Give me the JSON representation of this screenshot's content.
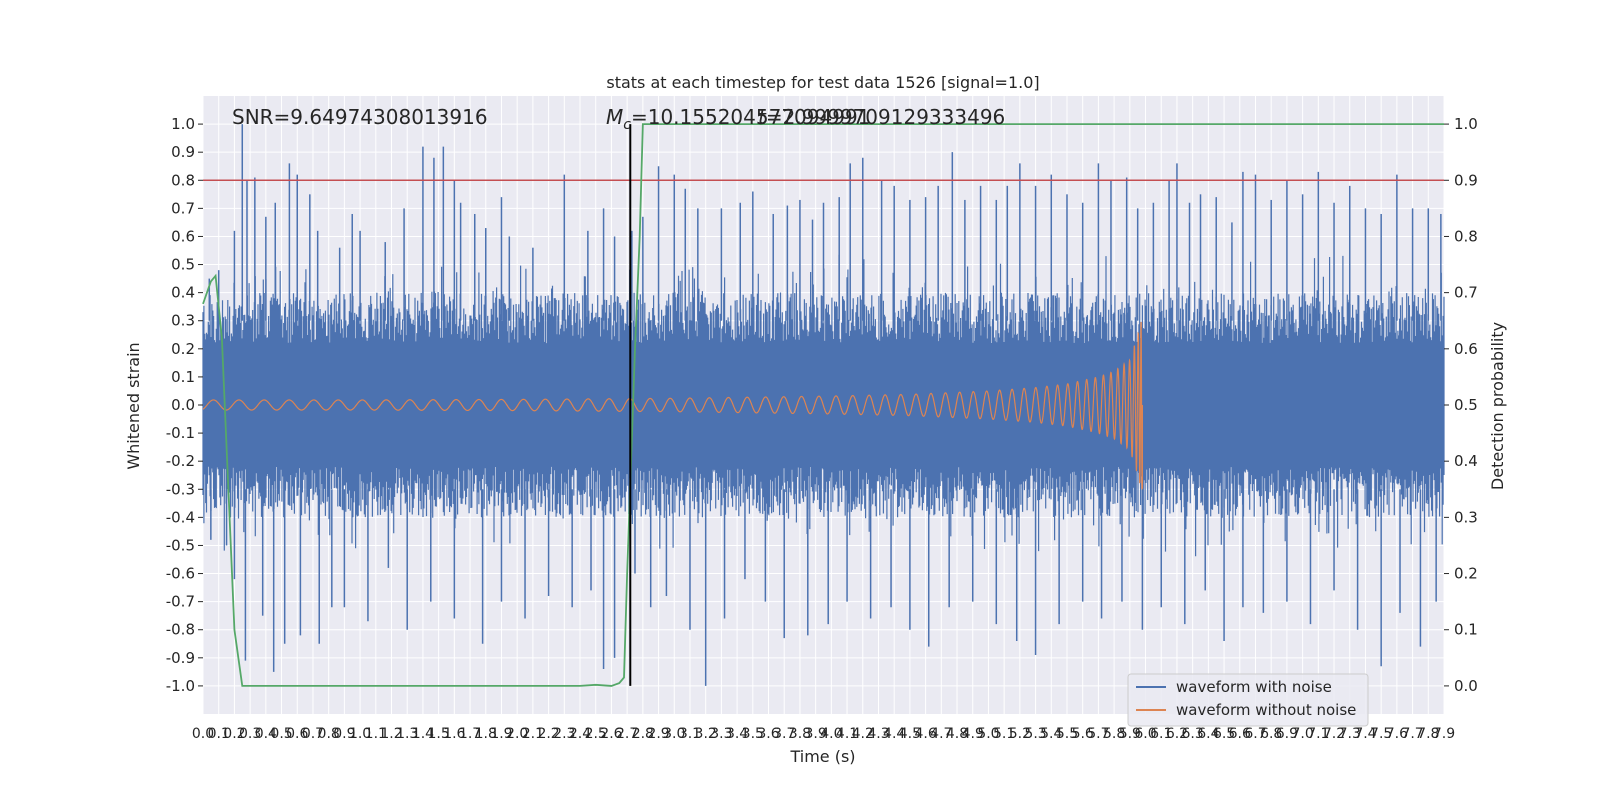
{
  "chart_data": {
    "type": "line",
    "title": "stats at each timestep for test data 1526 [signal=1.0]",
    "xlabel": "Time (s)",
    "ylabel_left": "Whitened strain",
    "ylabel_right": "Detection probability",
    "xlim": [
      0.0,
      7.9
    ],
    "ylim_left": [
      -1.1,
      1.1
    ],
    "ylim_right": [
      -0.05,
      1.05
    ],
    "x_ticks": [
      "0.0",
      "0.1",
      "0.2",
      "0.3",
      "0.4",
      "0.5",
      "0.6",
      "0.7",
      "0.8",
      "0.9",
      "1.0",
      "1.1",
      "1.2",
      "1.3",
      "1.4",
      "1.5",
      "1.6",
      "1.7",
      "1.8",
      "1.9",
      "2.0",
      "2.1",
      "2.2",
      "2.3",
      "2.4",
      "2.5",
      "2.6",
      "2.7",
      "2.8",
      "2.9",
      "3.0",
      "3.1",
      "3.2",
      "3.3",
      "3.4",
      "3.5",
      "3.6",
      "3.7",
      "3.8",
      "3.9",
      "4.0",
      "4.1",
      "4.2",
      "4.3",
      "4.4",
      "4.5",
      "4.6",
      "4.7",
      "4.8",
      "4.9",
      "5.0",
      "5.1",
      "5.2",
      "5.3",
      "5.4",
      "5.5",
      "5.6",
      "5.7",
      "5.8",
      "5.9",
      "6.0",
      "6.1",
      "6.2",
      "6.3",
      "6.4",
      "6.5",
      "6.6",
      "6.7",
      "6.8",
      "6.9",
      "7.0",
      "7.1",
      "7.2",
      "7.3",
      "7.4",
      "7.5",
      "7.6",
      "7.7",
      "7.8",
      "7.9"
    ],
    "y_ticks_left": [
      "-1.0",
      "-0.9",
      "-0.8",
      "-0.7",
      "-0.6",
      "-0.5",
      "-0.4",
      "-0.3",
      "-0.2",
      "-0.1",
      "0.0",
      "0.1",
      "0.2",
      "0.3",
      "0.4",
      "0.5",
      "0.6",
      "0.7",
      "0.8",
      "0.9",
      "1.0"
    ],
    "y_ticks_right": [
      "0.0",
      "0.1",
      "0.2",
      "0.3",
      "0.4",
      "0.5",
      "0.6",
      "0.7",
      "0.8",
      "0.9",
      "1.0"
    ],
    "annotations": {
      "snr": "SNR=9.64974308013916",
      "mc": "=10.155204577094991",
      "mc_symbol_main": "M",
      "mc_symbol_sub": "c",
      "t": "=2.9999709129333496"
    },
    "series": [
      {
        "name": "waveform with noise",
        "axis": "left",
        "color": "#4c72b0",
        "style": "noisy-band",
        "x_range": [
          0.0,
          7.9
        ],
        "band": [
          -0.4,
          0.4
        ],
        "peak_times": [
          0.04,
          0.1,
          0.2,
          0.25,
          0.28,
          0.33,
          0.4,
          0.46,
          0.55,
          0.6,
          0.68,
          0.73,
          0.87,
          0.95,
          1.0,
          1.16,
          1.28,
          1.4,
          1.47,
          1.53,
          1.6,
          1.64,
          1.73,
          1.8,
          1.9,
          1.95,
          2.1,
          2.3,
          2.45,
          2.55,
          2.62,
          2.73,
          2.8,
          2.9,
          3.0,
          3.07,
          3.15,
          3.3,
          3.42,
          3.5,
          3.63,
          3.72,
          3.8,
          3.88,
          3.95,
          4.05,
          4.12,
          4.2,
          4.32,
          4.4,
          4.5,
          4.6,
          4.68,
          4.77,
          4.85,
          4.95,
          5.05,
          5.12,
          5.2,
          5.3,
          5.4,
          5.5,
          5.6,
          5.7,
          5.78,
          5.88,
          5.95,
          6.05,
          6.15,
          6.2,
          6.28,
          6.35,
          6.45,
          6.55,
          6.62,
          6.7,
          6.8,
          6.9,
          7.0,
          7.1,
          7.2,
          7.3,
          7.4,
          7.5,
          7.6,
          7.7,
          7.8,
          7.88
        ],
        "peak_values": [
          0.45,
          0.48,
          0.62,
          1.0,
          0.8,
          0.81,
          0.67,
          0.72,
          0.86,
          0.82,
          0.75,
          0.62,
          0.56,
          0.68,
          0.62,
          0.58,
          0.7,
          0.92,
          0.88,
          0.92,
          0.8,
          0.72,
          0.68,
          0.63,
          0.74,
          0.6,
          0.56,
          0.82,
          0.62,
          0.7,
          0.6,
          0.62,
          0.67,
          0.85,
          0.82,
          0.77,
          0.7,
          0.7,
          0.72,
          0.76,
          0.68,
          0.71,
          0.73,
          0.66,
          0.72,
          0.74,
          0.86,
          0.88,
          0.8,
          0.78,
          0.73,
          0.74,
          0.78,
          0.9,
          0.73,
          0.78,
          0.73,
          0.78,
          0.86,
          0.78,
          0.82,
          0.75,
          0.72,
          0.86,
          0.8,
          0.81,
          0.7,
          0.72,
          0.8,
          0.86,
          0.72,
          0.75,
          0.74,
          0.65,
          0.83,
          0.82,
          0.73,
          0.8,
          0.75,
          0.83,
          0.72,
          0.78,
          0.7,
          0.68,
          0.82,
          0.7,
          0.7,
          0.68
        ],
        "trough_times": [
          0.05,
          0.15,
          0.2,
          0.27,
          0.38,
          0.45,
          0.52,
          0.62,
          0.74,
          0.82,
          0.9,
          1.05,
          1.18,
          1.3,
          1.45,
          1.6,
          1.78,
          1.9,
          2.05,
          2.2,
          2.35,
          2.47,
          2.55,
          2.62,
          2.75,
          2.85,
          2.95,
          3.1,
          3.2,
          3.32,
          3.45,
          3.58,
          3.7,
          3.85,
          3.98,
          4.1,
          4.25,
          4.38,
          4.5,
          4.62,
          4.75,
          4.9,
          5.05,
          5.18,
          5.3,
          5.45,
          5.6,
          5.72,
          5.85,
          5.98,
          6.1,
          6.25,
          6.38,
          6.5,
          6.62,
          6.75,
          6.9,
          7.05,
          7.2,
          7.35,
          7.5,
          7.62,
          7.75,
          7.85
        ],
        "trough_values": [
          -0.48,
          -0.5,
          -0.62,
          -0.91,
          -0.75,
          -0.95,
          -0.85,
          -0.82,
          -0.85,
          -0.72,
          -0.72,
          -0.77,
          -0.58,
          -0.8,
          -0.7,
          -0.76,
          -0.85,
          -0.7,
          -0.76,
          -0.68,
          -0.72,
          -0.66,
          -0.94,
          -0.9,
          -0.6,
          -0.72,
          -0.68,
          -0.8,
          -1.0,
          -0.76,
          -0.62,
          -0.7,
          -0.83,
          -0.82,
          -0.78,
          -0.7,
          -0.76,
          -0.72,
          -0.8,
          -0.86,
          -0.72,
          -0.7,
          -0.78,
          -0.84,
          -0.89,
          -0.78,
          -0.7,
          -0.76,
          -0.7,
          -0.8,
          -0.72,
          -0.78,
          -0.66,
          -0.84,
          -0.72,
          -0.74,
          -0.7,
          -0.78,
          -0.66,
          -0.8,
          -0.93,
          -0.74,
          -0.86,
          -0.7
        ]
      },
      {
        "name": "waveform without noise",
        "axis": "left",
        "color": "#dd8452",
        "style": "chirp",
        "x_range": [
          0.0,
          5.98
        ],
        "envelope": {
          "t": [
            0.0,
            1.0,
            2.0,
            2.5,
            3.0,
            3.5,
            4.0,
            4.5,
            5.0,
            5.3,
            5.5,
            5.7,
            5.8,
            5.9,
            5.95,
            5.98
          ],
          "amp": [
            0.018,
            0.018,
            0.02,
            0.022,
            0.024,
            0.028,
            0.032,
            0.038,
            0.05,
            0.062,
            0.075,
            0.1,
            0.12,
            0.16,
            0.25,
            0.32
          ]
        }
      },
      {
        "name": "detection probability",
        "axis": "right",
        "color": "#55a868",
        "x": [
          0.0,
          0.05,
          0.08,
          0.12,
          0.2,
          0.25,
          0.5,
          1.0,
          1.5,
          2.0,
          2.2,
          2.3,
          2.4,
          2.5,
          2.6,
          2.65,
          2.68,
          2.7,
          2.75,
          2.78,
          2.8,
          2.85,
          3.0,
          4.0,
          5.0,
          6.0,
          7.0,
          7.9
        ],
        "y": [
          0.68,
          0.72,
          0.73,
          0.62,
          0.1,
          0.0,
          0.0,
          0.0,
          0.0,
          0.0,
          0.0,
          0.0,
          0.0,
          0.002,
          0.0,
          0.005,
          0.015,
          0.2,
          0.6,
          0.8,
          1.0,
          1.0,
          1.0,
          1.0,
          1.0,
          1.0,
          1.0,
          1.0
        ]
      }
    ],
    "threshold_line": {
      "axis": "left",
      "y": 0.8,
      "color": "#c44e52"
    },
    "vertical_marker": {
      "x": 2.72,
      "y_range": [
        -1.0,
        1.0
      ],
      "color": "#000000"
    },
    "legend": {
      "placement": "lower-right",
      "entries": [
        {
          "label": "waveform with noise",
          "color": "#4c72b0"
        },
        {
          "label": "waveform without noise",
          "color": "#dd8452"
        }
      ]
    },
    "grid": true,
    "background": "#eaeaf2"
  }
}
